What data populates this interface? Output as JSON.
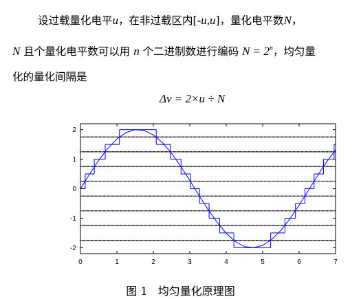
{
  "paragraph": {
    "lines": [
      [
        {
          "text": "设过载量化电平"
        },
        {
          "text": "u",
          "math": true
        },
        {
          "text": "，在非过载区内["
        },
        {
          "text": "-u,u",
          "math": true
        },
        {
          "text": "]，量化电平数"
        },
        {
          "text": "N",
          "math": true
        },
        {
          "text": "，"
        }
      ],
      [
        {
          "text": "N",
          "math": true
        },
        {
          "text": " 且个量化电平数可以用 "
        },
        {
          "text": "n",
          "math": true
        },
        {
          "text": " 个二进制数进行编码 "
        },
        {
          "text": "N",
          "math": true
        },
        {
          "text": " = 2",
          "math": true
        },
        {
          "text": "n",
          "math": true,
          "sup": true
        },
        {
          "text": "，均匀量"
        }
      ],
      [
        {
          "text": "化的量化间隔是"
        }
      ]
    ]
  },
  "formula": [
    {
      "text": "Δv",
      "math": true
    },
    {
      "text": " = 2×",
      "math": true
    },
    {
      "text": "u",
      "math": true
    },
    {
      "text": " ÷ ",
      "math": true
    },
    {
      "text": "N",
      "math": true
    }
  ],
  "chart_data": {
    "type": "line",
    "xlim": [
      0,
      7
    ],
    "ylim": [
      -2.2,
      2.2
    ],
    "xticks": [
      0,
      1,
      2,
      3,
      4,
      5,
      6,
      7
    ],
    "yticks": [
      -2,
      -1,
      0,
      1,
      2
    ],
    "series": [
      {
        "color": "#0000ff",
        "x": [
          0,
          0.25,
          0.5,
          0.75,
          1,
          1.25,
          1.5,
          1.75,
          2,
          2.25,
          2.5,
          2.75,
          3,
          3.25,
          3.5,
          3.75,
          4,
          4.25,
          4.5,
          4.75,
          5,
          5.25,
          5.5,
          5.75,
          6,
          6.25,
          6.5,
          6.75,
          7
        ],
        "values": [
          0,
          0.49,
          0.96,
          1.36,
          1.68,
          1.9,
          2.0,
          1.97,
          1.82,
          1.56,
          1.2,
          0.76,
          0.28,
          -0.22,
          -0.7,
          -1.14,
          -1.51,
          -1.79,
          -1.96,
          -2.0,
          -1.92,
          -1.72,
          -1.41,
          -1.02,
          -0.56,
          -0.07,
          0.43,
          0.9,
          1.31
        ]
      },
      {
        "color": "#0000ff",
        "step": true,
        "edges": [
          0,
          0.13,
          0.38,
          0.68,
          1.07,
          2.08,
          2.47,
          2.76,
          3.02,
          3.27,
          3.53,
          3.82,
          4.21,
          5.22,
          5.61,
          5.9,
          6.16,
          6.41,
          6.67,
          6.96,
          7
        ],
        "values": [
          0,
          0.5,
          1,
          1.5,
          2,
          1.5,
          1,
          0.5,
          0,
          -0.5,
          -1,
          -1.5,
          -2,
          -1.5,
          -1,
          -0.5,
          0,
          0.5,
          1,
          1.5
        ]
      }
    ],
    "thresholds": {
      "values": [
        1.75,
        1.25,
        0.75,
        0.25,
        -0.25,
        -0.75,
        -1.25,
        -1.75
      ],
      "colors": [
        "#ff0000",
        "#00a000",
        "#0000ff",
        "#000000"
      ]
    }
  },
  "caption": "图 1   均匀量化原理图"
}
